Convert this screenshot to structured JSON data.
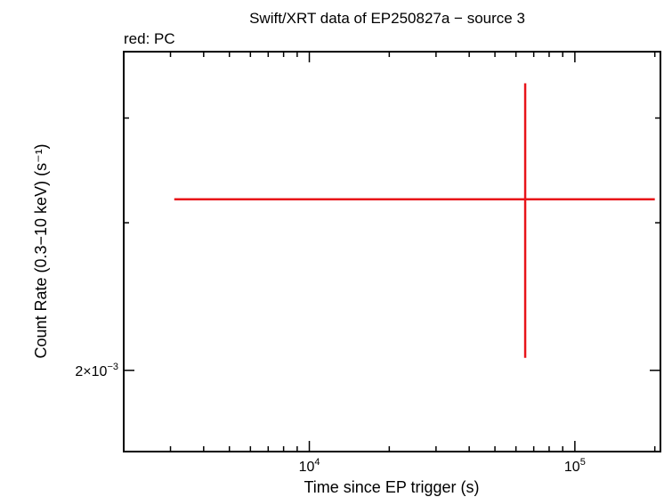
{
  "chart_data": {
    "type": "scatter",
    "title": "Swift/XRT data of EP250827a − source 3",
    "subtitle": "red: PC",
    "xlabel": "Time since EP trigger (s)",
    "ylabel": "Count Rate (0.3−10 keV) (s⁻¹)",
    "x_scale": "log",
    "y_scale": "log",
    "xlim": [
      2000,
      210000
    ],
    "ylim": [
      0.0016,
      0.0048
    ],
    "x_tick_labels": [
      {
        "base": "10",
        "exp": "4",
        "value": 10000
      },
      {
        "base": "10",
        "exp": "5",
        "value": 100000
      }
    ],
    "y_tick_labels": [
      {
        "base": "2×10",
        "exp": "−3",
        "value": 0.002
      }
    ],
    "grid": false,
    "series": [
      {
        "color": "#e8141a",
        "points": [
          {
            "x": 65000,
            "x_low": 3100,
            "x_high": 200000,
            "y": 0.0032,
            "y_low": 0.00207,
            "y_high": 0.0044
          }
        ]
      }
    ]
  }
}
